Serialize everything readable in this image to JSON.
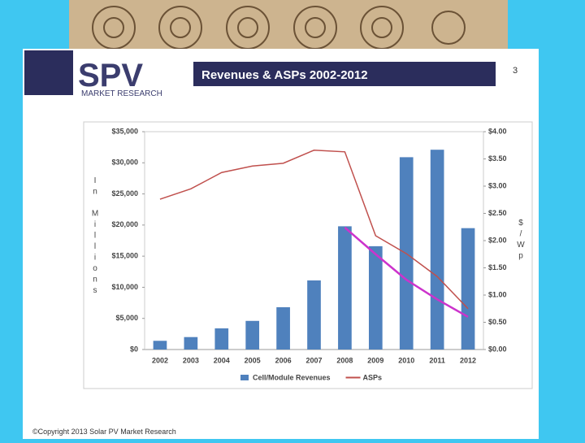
{
  "slide": {
    "page_number": "3",
    "logo": "SPV",
    "logo_sub": "MARKET RESEARCH",
    "footer": "©Copyright 2013 Solar PV Market Research"
  },
  "chart_data": {
    "type": "bar-line",
    "title": "Revenues & ASPs 2002-2012",
    "y_label": "In Millions",
    "y2_label": "$/Wp",
    "categories": [
      "2002",
      "2003",
      "2004",
      "2005",
      "2006",
      "2007",
      "2008",
      "2009",
      "2010",
      "2011",
      "2012"
    ],
    "series": [
      {
        "name": "Cell/Module Revenues",
        "color": "#4f81bd",
        "type": "bar",
        "values": [
          1400,
          2000,
          3400,
          4600,
          6800,
          11100,
          19800,
          16600,
          30900,
          32100,
          19500
        ]
      },
      {
        "name": "ASPs",
        "color": "#c0504d",
        "type": "line",
        "axis": "y2",
        "values": [
          2.76,
          2.95,
          3.25,
          3.37,
          3.42,
          3.66,
          3.63,
          2.09,
          1.76,
          1.34,
          0.75
        ]
      }
    ],
    "trend_line": {
      "color": "#cc33cc",
      "axis": "y2",
      "values": [
        null,
        null,
        null,
        null,
        null,
        null,
        2.24,
        1.75,
        1.28,
        0.92,
        0.6
      ]
    },
    "ylim": [
      0,
      35000
    ],
    "yticks": [
      {
        "value": 0,
        "label": "$0"
      },
      {
        "value": 5000,
        "label": "$5,000"
      },
      {
        "value": 10000,
        "label": "$10,000"
      },
      {
        "value": 15000,
        "label": "$15,000"
      },
      {
        "value": 20000,
        "label": "$20,000"
      },
      {
        "value": 25000,
        "label": "$25,000"
      },
      {
        "value": 30000,
        "label": "$30,000"
      },
      {
        "value": 35000,
        "label": "$35,000"
      }
    ],
    "y2lim": [
      0,
      4
    ],
    "y2ticks": [
      {
        "value": 0,
        "label": "$0.00"
      },
      {
        "value": 0.5,
        "label": "$0.50"
      },
      {
        "value": 1,
        "label": "$1.00"
      },
      {
        "value": 1.5,
        "label": "$1.50"
      },
      {
        "value": 2,
        "label": "$2.00"
      },
      {
        "value": 2.5,
        "label": "$2.50"
      },
      {
        "value": 3,
        "label": "$3.00"
      },
      {
        "value": 3.5,
        "label": "$3.50"
      },
      {
        "value": 4,
        "label": "$4.00"
      }
    ],
    "legend": "bottom"
  }
}
